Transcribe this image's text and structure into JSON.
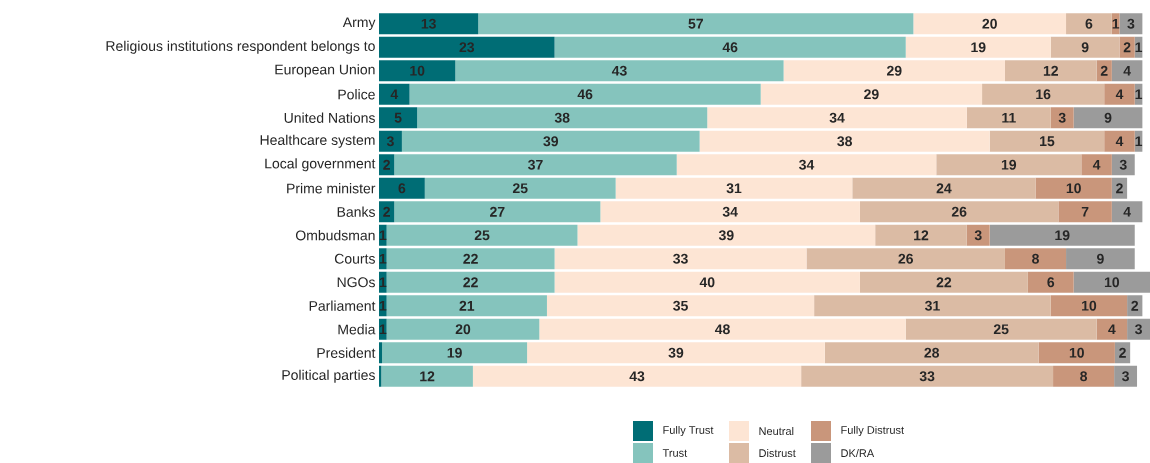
{
  "chart_data": {
    "type": "bar",
    "orientation": "horizontal",
    "stacked": true,
    "legend": "bottom",
    "tick_labels": "y",
    "categories": [
      "Army",
      "Religious institutions respondent belongs to",
      "European Union",
      "Police",
      "United Nations",
      "Healthcare system",
      "Local government",
      "Prime minister",
      "Banks",
      "Ombudsman",
      "Courts",
      "NGOs",
      "Parliament",
      "Media",
      "President",
      "Political parties"
    ],
    "series": [
      {
        "name": "Fully Trust",
        "color": "#006d75",
        "values": [
          13,
          23,
          10,
          4,
          5,
          3,
          2,
          6,
          2,
          1,
          1,
          1,
          1,
          1,
          0.4,
          0.3
        ],
        "value_labels": [
          "13",
          "23",
          "10",
          "4",
          "5",
          "3",
          "2",
          "6",
          "2",
          "1",
          "1",
          "1",
          "1",
          "1",
          null,
          null
        ]
      },
      {
        "name": "Trust",
        "color": "#85c4bd",
        "values": [
          57,
          46,
          43,
          46,
          38,
          39,
          37,
          25,
          27,
          25,
          22,
          22,
          21,
          20,
          19,
          12
        ],
        "value_labels": [
          "57",
          "46",
          "43",
          "46",
          "38",
          "39",
          "37",
          "25",
          "27",
          "25",
          "22",
          "22",
          "21",
          "20",
          "19",
          "12"
        ]
      },
      {
        "name": "Neutral",
        "color": "#fde5d4",
        "values": [
          20,
          19,
          29,
          29,
          34,
          38,
          34,
          31,
          34,
          39,
          33,
          40,
          35,
          48,
          39,
          43
        ],
        "value_labels": [
          "20",
          "19",
          "29",
          "29",
          "34",
          "38",
          "34",
          "31",
          "34",
          "39",
          "33",
          "40",
          "35",
          "48",
          "39",
          "43"
        ]
      },
      {
        "name": "Distrust",
        "color": "#dbbba4",
        "values": [
          6,
          9,
          12,
          16,
          11,
          15,
          19,
          24,
          26,
          12,
          26,
          22,
          31,
          25,
          28,
          33
        ],
        "value_labels": [
          "6",
          "9",
          "12",
          "16",
          "11",
          "15",
          "19",
          "24",
          "26",
          "12",
          "26",
          "22",
          "31",
          "25",
          "28",
          "33"
        ]
      },
      {
        "name": "Fully Distrust",
        "color": "#c9967b",
        "values": [
          1,
          2,
          2,
          4,
          3,
          4,
          4,
          10,
          7,
          3,
          8,
          6,
          10,
          4,
          10,
          8
        ],
        "value_labels": [
          "1",
          "2",
          "2",
          "4",
          "3",
          "4",
          "4",
          "10",
          "7",
          "3",
          "8",
          "6",
          "10",
          "4",
          "10",
          "8"
        ]
      },
      {
        "name": "DK/RA",
        "color": "#9b9b9b",
        "values": [
          3,
          1,
          4,
          1,
          9,
          1,
          3,
          2,
          4,
          19,
          9,
          10,
          2,
          3,
          2,
          3
        ],
        "value_labels": [
          "3",
          "1",
          "4",
          "1",
          "9",
          "1",
          "3",
          "2",
          "4",
          "19",
          "9",
          "10",
          "2",
          "3",
          "2",
          "3"
        ]
      }
    ]
  }
}
